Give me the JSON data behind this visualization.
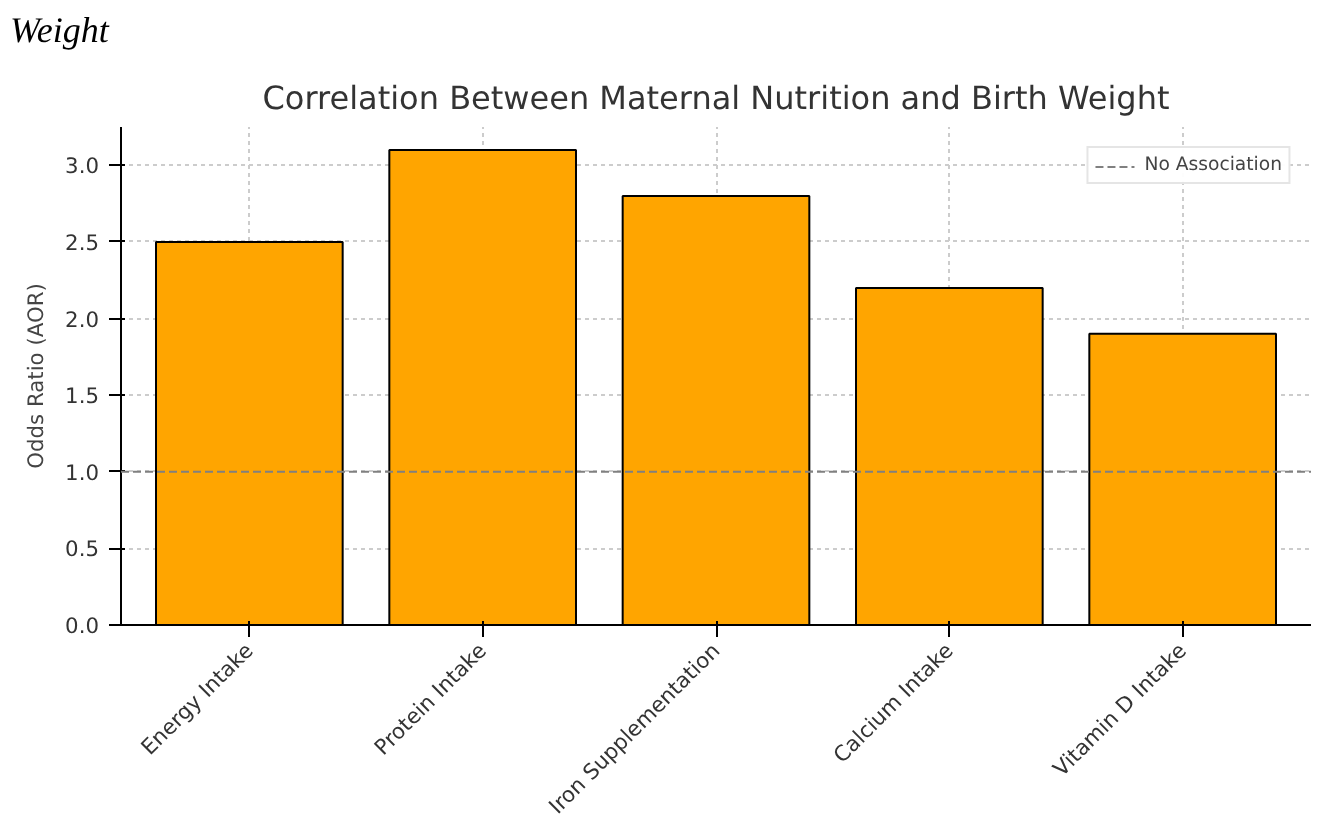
{
  "chart_data": {
    "type": "bar",
    "title": "Correlation Between Maternal Nutrition and Birth Weight",
    "ylabel": "Odds Ratio (AOR)",
    "annotations": [
      "Weight"
    ],
    "categories": [
      "Energy Intake",
      "Protein Intake",
      "Iron Supplementation",
      "Calcium Intake",
      "Vitamin D Intake"
    ],
    "values": [
      2.5,
      3.1,
      2.8,
      2.2,
      1.9
    ],
    "color": "#ffa500",
    "ylim": [
      0,
      3.25
    ],
    "yticks": [
      {
        "value": 0,
        "label": "0.0"
      },
      {
        "value": 0.5,
        "label": "0.5"
      },
      {
        "value": 1,
        "label": "1.0"
      },
      {
        "value": 1.5,
        "label": "1.5"
      },
      {
        "value": 2,
        "label": "2.0"
      },
      {
        "value": 2.5,
        "label": "2.5"
      },
      {
        "value": 3,
        "label": "3.0"
      }
    ],
    "ref_lines": [
      {
        "axis": "y",
        "value": 1.0,
        "label": "No Association",
        "color": "#808080",
        "line_style": "dashed"
      }
    ],
    "grid": true,
    "legend": "top right"
  }
}
